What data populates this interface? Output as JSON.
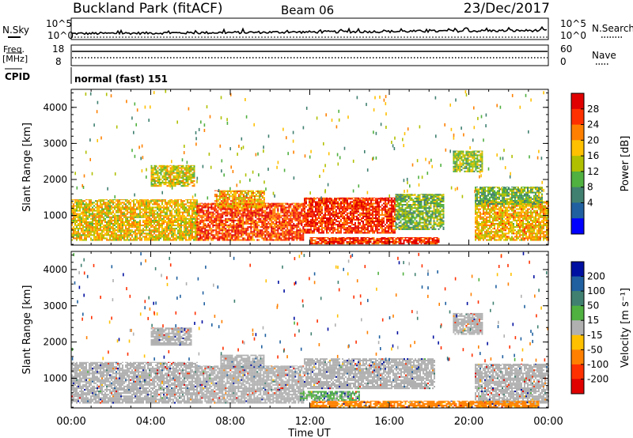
{
  "header": {
    "site": "Buckland Park (fitACF)",
    "beam": "Beam 06",
    "date": "23/Dec/2017"
  },
  "noise_panel": {
    "left_label": "N.Sky",
    "right_label": "N.Search",
    "ticks": [
      "10^5",
      "10^0"
    ]
  },
  "freq_panel": {
    "left_label_1": "Freq.",
    "left_label_2": "[MHz]",
    "left_ticks": [
      "18",
      "8"
    ],
    "right_label": "Nave",
    "right_ticks": [
      "60",
      "0"
    ]
  },
  "cpid_panel": {
    "label": "CPID",
    "value": "normal (fast) 151"
  },
  "chart_data": [
    {
      "type": "heatmap",
      "name": "power",
      "ylabel": "Slant Range [km]",
      "xlabel": "Time UT",
      "x_ticks": [
        "00:00",
        "04:00",
        "08:00",
        "12:00",
        "16:00",
        "20:00",
        "00:00"
      ],
      "x_range_hours": [
        0,
        24
      ],
      "y_ticks": [
        1000,
        2000,
        3000,
        4000
      ],
      "ylim": [
        180,
        4500
      ],
      "colorbar": {
        "label": "Power [dB]",
        "ticks": [
          "28",
          "24",
          "20",
          "16",
          "12",
          "8",
          "4"
        ],
        "colors": [
          "#e00000",
          "#ff3000",
          "#ff8000",
          "#ffc000",
          "#b0c000",
          "#50b040",
          "#408070",
          "#2060a0",
          "#0000ff"
        ]
      },
      "regions": [
        {
          "t0": 0.0,
          "t1": 6.3,
          "r0": 300,
          "r1": 1450,
          "level": 18
        },
        {
          "t0": 6.3,
          "t1": 11.7,
          "r0": 300,
          "r1": 1350,
          "level": 26
        },
        {
          "t0": 11.7,
          "t1": 16.3,
          "r0": 500,
          "r1": 1500,
          "level": 27
        },
        {
          "t0": 16.3,
          "t1": 18.7,
          "r0": 600,
          "r1": 1600,
          "level": 12
        },
        {
          "t0": 20.3,
          "t1": 24.0,
          "r0": 300,
          "r1": 1400,
          "level": 19
        },
        {
          "t0": 4.0,
          "t1": 6.2,
          "r0": 1800,
          "r1": 2400,
          "level": 17
        },
        {
          "t0": 7.2,
          "t1": 9.7,
          "r0": 1200,
          "r1": 1700,
          "level": 20
        },
        {
          "t0": 19.2,
          "t1": 20.7,
          "r0": 2200,
          "r1": 2800,
          "level": 14
        },
        {
          "t0": 20.3,
          "t1": 23.7,
          "r0": 1300,
          "r1": 1800,
          "level": 12
        },
        {
          "t0": 12.0,
          "t1": 18.5,
          "r0": 200,
          "r1": 400,
          "level": 27
        }
      ]
    },
    {
      "type": "heatmap",
      "name": "velocity",
      "ylabel": "Slant Range [km]",
      "xlabel": "Time UT",
      "x_ticks": [
        "00:00",
        "04:00",
        "08:00",
        "12:00",
        "16:00",
        "20:00",
        "00:00"
      ],
      "x_range_hours": [
        0,
        24
      ],
      "y_ticks": [
        1000,
        2000,
        3000,
        4000
      ],
      "ylim": [
        180,
        4500
      ],
      "colorbar": {
        "label": "Velocity [m s⁻¹]",
        "ticks": [
          "200",
          "100",
          "50",
          "15",
          "-15",
          "-50",
          "-100",
          "-200"
        ],
        "colors": [
          "#0010a0",
          "#2060a0",
          "#408070",
          "#50b040",
          "#b0b0b0",
          "#ffc000",
          "#ff8000",
          "#ff3000",
          "#e00000"
        ]
      },
      "regions": [
        {
          "t0": 0.0,
          "t1": 6.3,
          "r0": 300,
          "r1": 1450,
          "level": 0
        },
        {
          "t0": 6.3,
          "t1": 11.7,
          "r0": 300,
          "r1": 1350,
          "level": 0
        },
        {
          "t0": 11.7,
          "t1": 18.3,
          "r0": 700,
          "r1": 1550,
          "level": 0
        },
        {
          "t0": 20.3,
          "t1": 24.0,
          "r0": 300,
          "r1": 1400,
          "level": 0
        },
        {
          "t0": 4.0,
          "t1": 6.0,
          "r0": 1900,
          "r1": 2400,
          "level": 0
        },
        {
          "t0": 7.5,
          "t1": 9.7,
          "r0": 1250,
          "r1": 1650,
          "level": 0
        },
        {
          "t0": 19.2,
          "t1": 20.7,
          "r0": 2200,
          "r1": 2800,
          "level": 0
        },
        {
          "t0": 12.0,
          "t1": 23.5,
          "r0": 180,
          "r1": 380,
          "level": -60
        },
        {
          "t0": 11.5,
          "t1": 14.5,
          "r0": 380,
          "r1": 650,
          "level": 20
        }
      ]
    }
  ]
}
